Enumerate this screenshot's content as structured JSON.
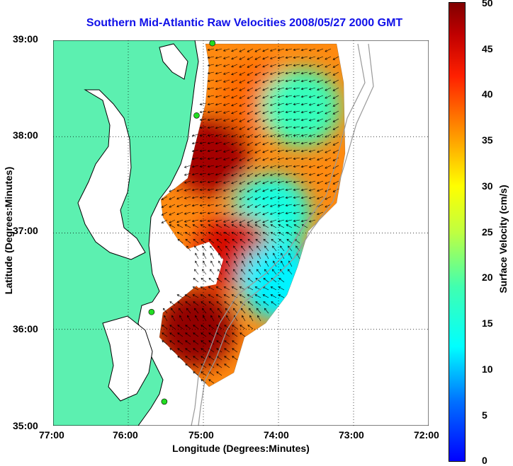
{
  "title": "Southern Mid-Atlantic Raw Velocities 2008/05/27 2000 GMT",
  "xlabel": "Longitude (Degrees:Minutes)",
  "ylabel": "Latitude (Degrees:Minutes)",
  "colorbar": {
    "label": "Surface Velocity (cm/s)",
    "min": 0,
    "max": 50,
    "ticks": [
      "0",
      "5",
      "10",
      "15",
      "20",
      "25",
      "30",
      "35",
      "40",
      "45",
      "50"
    ]
  },
  "x_ticks": [
    "77:00",
    "76:00",
    "75:00",
    "74:00",
    "73:00",
    "72:00"
  ],
  "y_ticks": [
    "39:00",
    "38:00",
    "37:00",
    "36:00",
    "35:00"
  ],
  "colors": {
    "land": "#5cf0b0",
    "title": "#1010e8",
    "coast": "#000000",
    "grid": "#000000"
  },
  "chart_data": {
    "type": "heatmap",
    "xlim": [
      -77,
      -72
    ],
    "ylim": [
      35,
      39
    ],
    "grid": true,
    "x_ticks": [
      -77,
      -76,
      -75,
      -74,
      -73,
      -72
    ],
    "y_ticks": [
      39,
      38,
      37,
      36,
      35
    ],
    "stations": [
      {
        "lon": -74.88,
        "lat": 38.97
      },
      {
        "lon": -75.09,
        "lat": 38.22
      },
      {
        "lon": -75.69,
        "lat": 36.18
      },
      {
        "lon": -75.52,
        "lat": 35.25
      }
    ],
    "regions": [
      {
        "lon": -74.3,
        "lat": 38.4,
        "speed": 38
      },
      {
        "lon": -74.9,
        "lat": 37.8,
        "speed": 48
      },
      {
        "lon": -74.1,
        "lat": 37.2,
        "speed": 15
      },
      {
        "lon": -73.7,
        "lat": 38.3,
        "speed": 18
      },
      {
        "lon": -74.6,
        "lat": 36.8,
        "speed": 45
      },
      {
        "lon": -74.0,
        "lat": 36.5,
        "speed": 12
      },
      {
        "lon": -75.1,
        "lat": 36.0,
        "speed": 49
      }
    ]
  }
}
